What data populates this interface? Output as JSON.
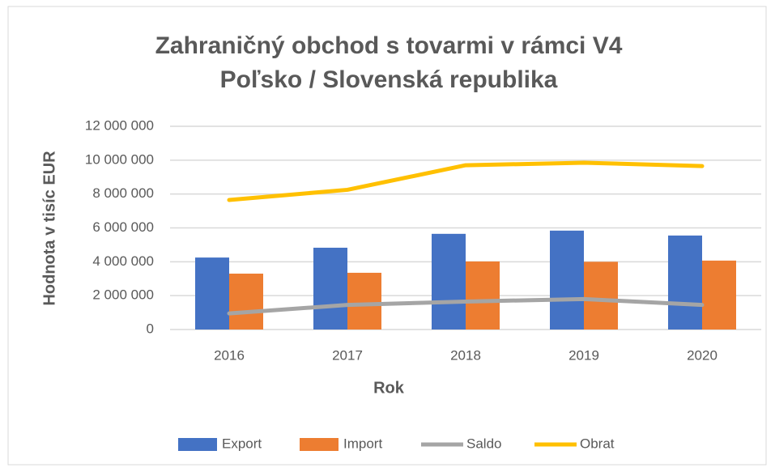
{
  "chart_data": {
    "type": "bar",
    "title": "Zahraničný obchod s tovarmi v rámci V4",
    "subtitle": "Poľsko / Slovenská republika",
    "y_axis_label": "Hodnota v tisíc EUR",
    "x_axis_label": "Rok",
    "categories": [
      "2016",
      "2017",
      "2018",
      "2019",
      "2020"
    ],
    "series": [
      {
        "name": "Export",
        "color": "#4472c4",
        "type": "bar",
        "values": [
          4250000,
          4830000,
          5650000,
          5840000,
          5550000
        ]
      },
      {
        "name": "Import",
        "color": "#ed7d31",
        "type": "bar",
        "values": [
          3300000,
          3350000,
          4020000,
          4000000,
          4070000
        ]
      },
      {
        "name": "Saldo",
        "color": "#a5a5a5",
        "type": "line",
        "values": [
          950000,
          1450000,
          1650000,
          1800000,
          1450000
        ]
      },
      {
        "name": "Obrat",
        "color": "#ffc000",
        "type": "line",
        "values": [
          7650000,
          8250000,
          9700000,
          9850000,
          9650000
        ]
      }
    ],
    "ylim": [
      0,
      12000000
    ],
    "yticks": [
      0,
      {
        "value": 2000000,
        "label": "2 000 000"
      },
      {
        "value": 4000000,
        "label": "4 000 000"
      },
      {
        "value": 6000000,
        "label": "6 000 000"
      },
      {
        "value": 8000000,
        "label": "8 000 000"
      },
      {
        "value": 10000000,
        "label": "10 000 000"
      },
      {
        "value": 12000000,
        "label": "12 000 000"
      }
    ],
    "grid": true,
    "legend": "bottom"
  }
}
